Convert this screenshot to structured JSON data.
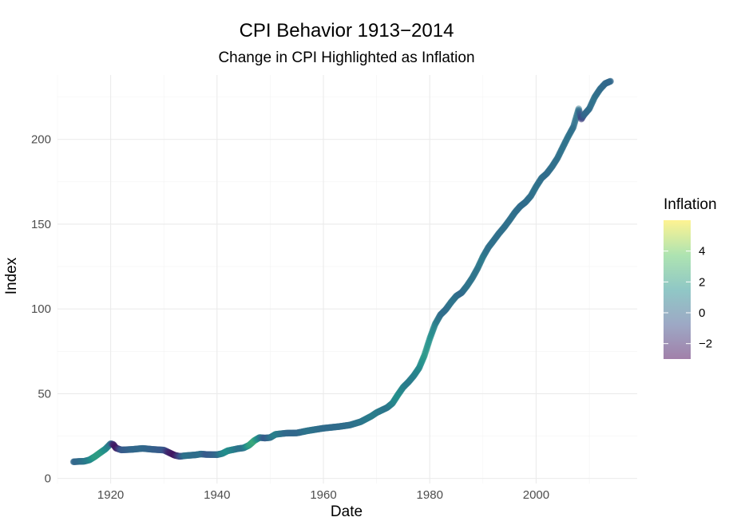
{
  "chart_data": {
    "type": "scatter",
    "title": "CPI Behavior 1913−2014",
    "subtitle": "Change in CPI Highlighted as Inflation",
    "xlabel": "Date",
    "ylabel": "Index",
    "xlim": [
      1910,
      2019
    ],
    "ylim": [
      -3,
      238
    ],
    "x_ticks": [
      1920,
      1940,
      1960,
      1980,
      2000
    ],
    "y_ticks": [
      0,
      50,
      100,
      150,
      200
    ],
    "grid": true,
    "legend": {
      "title": "Inflation",
      "placement": "right",
      "range": [
        -3,
        6
      ],
      "ticks": [
        -2,
        0,
        2,
        4
      ],
      "tick_labels": [
        "−2",
        "0",
        "2",
        "4"
      ],
      "colors": [
        "#440154",
        "#3b528b",
        "#21908c",
        "#5dc863",
        "#fde725"
      ],
      "opacity": 0.5
    },
    "series": [
      {
        "points": [
          [
            1913.0,
            9.8,
            0.0
          ],
          [
            1914.0,
            10.0,
            0.1
          ],
          [
            1915.0,
            10.1,
            0.5
          ],
          [
            1916.0,
            10.9,
            1.0
          ],
          [
            1917.0,
            12.8,
            2.0
          ],
          [
            1918.0,
            15.1,
            2.0
          ],
          [
            1919.0,
            17.3,
            1.5
          ],
          [
            1920.0,
            20.5,
            0.5
          ],
          [
            1920.5,
            20.0,
            -2.0
          ],
          [
            1921.0,
            17.9,
            -2.5
          ],
          [
            1922.0,
            16.8,
            -0.5
          ],
          [
            1924.0,
            17.1,
            0.0
          ],
          [
            1926.0,
            17.7,
            0.1
          ],
          [
            1928.0,
            17.1,
            -0.2
          ],
          [
            1930.0,
            16.7,
            -0.5
          ],
          [
            1931.0,
            15.2,
            -2.0
          ],
          [
            1932.0,
            13.7,
            -2.5
          ],
          [
            1933.0,
            13.0,
            -1.0
          ],
          [
            1934.0,
            13.4,
            0.5
          ],
          [
            1936.0,
            13.9,
            0.2
          ],
          [
            1937.0,
            14.4,
            0.4
          ],
          [
            1938.0,
            14.1,
            -0.5
          ],
          [
            1940.0,
            14.0,
            0.0
          ],
          [
            1941.0,
            14.7,
            1.0
          ],
          [
            1942.0,
            16.3,
            1.5
          ],
          [
            1944.0,
            17.6,
            0.5
          ],
          [
            1945.0,
            18.0,
            0.4
          ],
          [
            1946.0,
            19.5,
            2.0
          ],
          [
            1947.0,
            22.3,
            2.5
          ],
          [
            1948.0,
            24.1,
            1.0
          ],
          [
            1949.0,
            23.8,
            -0.5
          ],
          [
            1950.0,
            24.1,
            0.3
          ],
          [
            1951.0,
            26.0,
            1.0
          ],
          [
            1953.0,
            26.7,
            0.1
          ],
          [
            1955.0,
            26.8,
            0.0
          ],
          [
            1957.0,
            28.1,
            0.5
          ],
          [
            1960.0,
            29.6,
            0.2
          ],
          [
            1963.0,
            30.6,
            0.2
          ],
          [
            1965.0,
            31.5,
            0.3
          ],
          [
            1967.0,
            33.4,
            0.5
          ],
          [
            1969.0,
            36.7,
            0.8
          ],
          [
            1970.0,
            38.8,
            0.8
          ],
          [
            1972.0,
            41.8,
            0.5
          ],
          [
            1973.0,
            44.4,
            1.0
          ],
          [
            1974.0,
            49.3,
            1.5
          ],
          [
            1975.0,
            53.8,
            1.0
          ],
          [
            1976.0,
            56.9,
            0.7
          ],
          [
            1977.0,
            60.6,
            0.9
          ],
          [
            1978.0,
            65.2,
            1.2
          ],
          [
            1979.0,
            72.6,
            1.8
          ],
          [
            1980.0,
            82.4,
            1.5
          ],
          [
            1981.0,
            90.9,
            1.0
          ],
          [
            1982.0,
            96.5,
            0.3
          ],
          [
            1983.0,
            99.6,
            0.2
          ],
          [
            1984.0,
            103.9,
            0.5
          ],
          [
            1985.0,
            107.6,
            0.4
          ],
          [
            1986.0,
            109.6,
            0.1
          ],
          [
            1987.0,
            113.6,
            0.5
          ],
          [
            1988.0,
            118.3,
            0.5
          ],
          [
            1989.0,
            124.0,
            0.5
          ],
          [
            1990.0,
            130.7,
            0.7
          ],
          [
            1991.0,
            136.2,
            0.3
          ],
          [
            1992.0,
            140.3,
            0.3
          ],
          [
            1993.0,
            144.5,
            0.3
          ],
          [
            1994.0,
            148.2,
            0.3
          ],
          [
            1995.0,
            152.4,
            0.3
          ],
          [
            1996.0,
            156.9,
            0.3
          ],
          [
            1997.0,
            160.5,
            0.2
          ],
          [
            1998.0,
            163.0,
            0.2
          ],
          [
            1999.0,
            166.6,
            0.3
          ],
          [
            2000.0,
            172.2,
            0.4
          ],
          [
            2001.0,
            177.1,
            0.3
          ],
          [
            2002.0,
            179.9,
            0.2
          ],
          [
            2003.0,
            184.0,
            0.3
          ],
          [
            2004.0,
            188.9,
            0.3
          ],
          [
            2005.0,
            195.3,
            0.4
          ],
          [
            2006.0,
            201.6,
            0.4
          ],
          [
            2007.0,
            207.3,
            0.3
          ],
          [
            2008.0,
            218.0,
            0.5
          ],
          [
            2008.5,
            212.0,
            -1.5
          ],
          [
            2009.0,
            214.5,
            0.0
          ],
          [
            2010.0,
            218.1,
            0.2
          ],
          [
            2011.0,
            224.9,
            0.4
          ],
          [
            2012.0,
            229.6,
            0.2
          ],
          [
            2013.0,
            233.0,
            0.1
          ],
          [
            2014.0,
            234.3,
            0.0
          ]
        ]
      }
    ]
  }
}
